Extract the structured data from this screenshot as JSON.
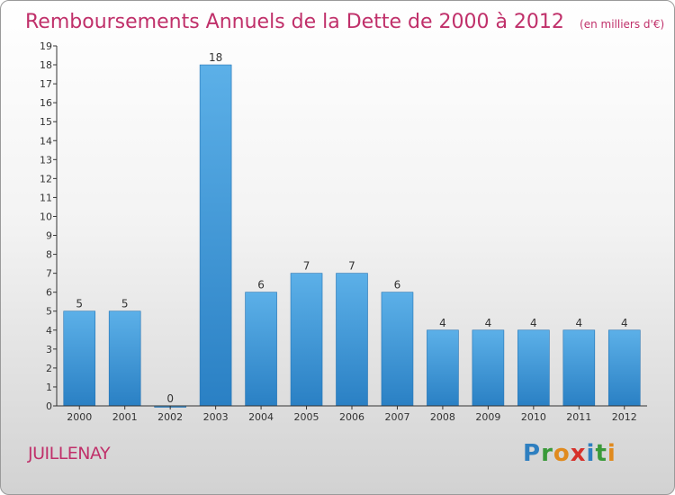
{
  "chart_data": {
    "type": "bar",
    "title": "Remboursements Annuels de la Dette de 2000 à 2012",
    "unit": "(en milliers d'€)",
    "categories": [
      "2000",
      "2001",
      "2002",
      "2003",
      "2004",
      "2005",
      "2006",
      "2007",
      "2008",
      "2009",
      "2010",
      "2011",
      "2012"
    ],
    "values": [
      5,
      5,
      0,
      18,
      6,
      7,
      7,
      6,
      4,
      4,
      4,
      4,
      4
    ],
    "ylim": [
      0,
      19
    ],
    "yticks": [
      0,
      1,
      2,
      3,
      4,
      5,
      6,
      7,
      8,
      9,
      10,
      11,
      12,
      13,
      14,
      15,
      16,
      17,
      18,
      19
    ],
    "bar_color": "#3a90d4",
    "bar_color_light": "#5aaee6",
    "grid": false
  },
  "footer": {
    "commune": "JUILLENAY",
    "logo": [
      "P",
      "r",
      "o",
      "x",
      "i",
      "t",
      "i"
    ]
  }
}
